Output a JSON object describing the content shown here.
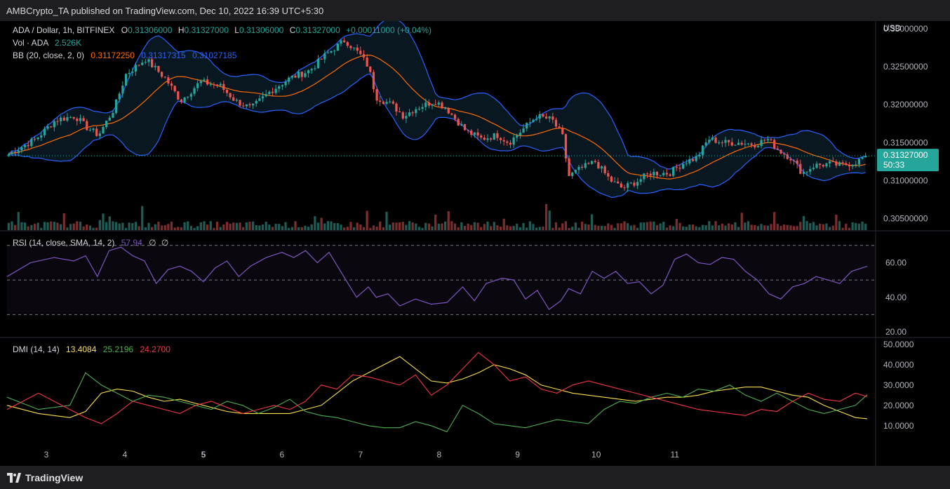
{
  "header": {
    "publisher": "AMBCrypto_TA published on TradingView.com, Dec 10, 2022 16:39 UTC+5:30"
  },
  "legend": {
    "symbol": "ADA / Dollar, 1h, BITFINEX",
    "o_label": "O",
    "o_value": "0.31306000",
    "h_label": "H",
    "h_value": "0.31327000",
    "l_label": "L",
    "l_value": "0.31306000",
    "c_label": "C",
    "c_value": "0.31327000",
    "change": "+0.00011000 (+0.04%)",
    "vol_label": "Vol · ADA",
    "vol_value": "2.526K",
    "bb_label": "BB (20, close, 2, 0)",
    "bb_basis": "0.31172250",
    "bb_upper": "0.31317315",
    "bb_lower": "0.31027185"
  },
  "price_axis": {
    "currency": "USD",
    "ticks": [
      "0.33000000",
      "0.32500000",
      "0.32000000",
      "0.31500000",
      "0.31000000",
      "0.30500000"
    ],
    "last_price": "0.31327000",
    "countdown": "50:33"
  },
  "rsi": {
    "label": "RSI (14, close, SMA, 14, 2)",
    "value": "57.94",
    "extra1": "∅",
    "extra2": "∅",
    "ticks": [
      "60.00",
      "40.00",
      "20.00"
    ]
  },
  "dmi": {
    "label": "DMI (14, 14)",
    "adx": "13.4084",
    "plus_di": "25.2196",
    "minus_di": "24.2700",
    "ticks": [
      "50.0000",
      "40.0000",
      "30.0000",
      "20.0000",
      "10.0000"
    ]
  },
  "time_axis": {
    "ticks": [
      "3",
      "4",
      "5",
      "6",
      "7",
      "8",
      "9",
      "10",
      "11"
    ]
  },
  "footer": {
    "brand": "TradingView"
  },
  "colors": {
    "up": "#26a69a",
    "down": "#ef5350",
    "bb_upper": "#2962ff",
    "bb_basis": "#ff6d00",
    "rsi": "#7e57c2",
    "adx": "#f9e04b",
    "plus_di": "#4caf50",
    "minus_di": "#f23645"
  },
  "chart_data": [
    {
      "type": "candlestick",
      "title": "ADA / Dollar, 1h, BITFINEX",
      "ylabel": "USD",
      "ylim": [
        0.3035,
        0.331
      ],
      "x_days": [
        "3",
        "4",
        "5",
        "6",
        "7",
        "8",
        "9",
        "10",
        "11"
      ],
      "anchor_closes": [
        [
          0.0,
          0.3135
        ],
        [
          0.35,
          0.3155
        ],
        [
          0.6,
          0.318
        ],
        [
          0.85,
          0.3185
        ],
        [
          1.0,
          0.317
        ],
        [
          1.15,
          0.316
        ],
        [
          1.35,
          0.3195
        ],
        [
          1.5,
          0.324
        ],
        [
          1.75,
          0.326
        ],
        [
          2.0,
          0.3235
        ],
        [
          2.2,
          0.3205
        ],
        [
          2.45,
          0.323
        ],
        [
          2.7,
          0.3225
        ],
        [
          2.9,
          0.3205
        ],
        [
          3.1,
          0.3195
        ],
        [
          3.35,
          0.3218
        ],
        [
          3.6,
          0.3235
        ],
        [
          3.85,
          0.3245
        ],
        [
          4.05,
          0.3265
        ],
        [
          4.3,
          0.3285
        ],
        [
          4.5,
          0.3265
        ],
        [
          4.6,
          0.325
        ],
        [
          4.7,
          0.321
        ],
        [
          4.9,
          0.32
        ],
        [
          5.05,
          0.3185
        ],
        [
          5.2,
          0.3195
        ],
        [
          5.45,
          0.3205
        ],
        [
          5.6,
          0.3195
        ],
        [
          5.85,
          0.3165
        ],
        [
          6.05,
          0.3155
        ],
        [
          6.25,
          0.316
        ],
        [
          6.4,
          0.315
        ],
        [
          6.55,
          0.3165
        ],
        [
          6.75,
          0.3185
        ],
        [
          6.95,
          0.318
        ],
        [
          7.1,
          0.3155
        ],
        [
          7.15,
          0.3105
        ],
        [
          7.3,
          0.3115
        ],
        [
          7.5,
          0.3125
        ],
        [
          7.7,
          0.31
        ],
        [
          7.85,
          0.309
        ],
        [
          8.05,
          0.31
        ],
        [
          8.2,
          0.311
        ],
        [
          8.45,
          0.311
        ],
        [
          8.65,
          0.3125
        ],
        [
          8.8,
          0.313
        ],
        [
          8.95,
          0.3155
        ],
        [
          9.15,
          0.315
        ],
        [
          9.35,
          0.315
        ],
        [
          9.55,
          0.3148
        ],
        [
          9.7,
          0.3155
        ],
        [
          9.85,
          0.314
        ],
        [
          10.0,
          0.313
        ],
        [
          10.15,
          0.311
        ],
        [
          10.3,
          0.312
        ],
        [
          10.5,
          0.3122
        ],
        [
          10.65,
          0.312
        ],
        [
          10.85,
          0.3125
        ],
        [
          10.95,
          0.31327
        ]
      ],
      "bb": {
        "basis_last": 0.3117225,
        "upper_last": 0.31317315,
        "lower_last": 0.31027185
      }
    },
    {
      "type": "line",
      "title": "RSI (14, close, SMA, 14, 2)",
      "ylim": [
        18,
        76
      ],
      "bands": [
        30,
        50,
        70
      ],
      "x": [
        0.0,
        0.3,
        0.6,
        0.85,
        1.0,
        1.15,
        1.3,
        1.45,
        1.6,
        1.75,
        1.9,
        2.05,
        2.2,
        2.35,
        2.5,
        2.65,
        2.8,
        2.95,
        3.1,
        3.3,
        3.5,
        3.65,
        3.8,
        3.95,
        4.1,
        4.3,
        4.45,
        4.6,
        4.7,
        4.85,
        5.0,
        5.2,
        5.4,
        5.6,
        5.8,
        5.95,
        6.1,
        6.3,
        6.45,
        6.6,
        6.75,
        6.9,
        7.05,
        7.15,
        7.3,
        7.45,
        7.6,
        7.75,
        7.9,
        8.05,
        8.2,
        8.35,
        8.5,
        8.65,
        8.8,
        8.95,
        9.1,
        9.25,
        9.4,
        9.55,
        9.7,
        9.85,
        10.0,
        10.15,
        10.3,
        10.45,
        10.6,
        10.75,
        10.95
      ],
      "values": [
        52,
        60,
        63,
        61,
        64,
        52,
        67,
        69,
        64,
        61,
        48,
        56,
        58,
        55,
        49,
        57,
        61,
        52,
        58,
        63,
        66,
        63,
        67,
        60,
        66,
        51,
        40,
        46,
        40,
        42,
        35,
        39,
        36,
        37,
        46,
        38,
        48,
        51,
        50,
        39,
        44,
        33,
        38,
        45,
        42,
        55,
        51,
        55,
        48,
        49,
        42,
        47,
        62,
        65,
        60,
        59,
        63,
        62,
        55,
        50,
        42,
        39,
        46,
        48,
        52,
        50,
        48,
        55,
        57.94
      ]
    },
    {
      "type": "line",
      "title": "DMI (14, 14)",
      "ylim": [
        2,
        52
      ],
      "x": [
        0.0,
        0.4,
        0.8,
        1.0,
        1.2,
        1.4,
        1.6,
        1.8,
        2.0,
        2.2,
        2.4,
        2.6,
        2.8,
        3.0,
        3.2,
        3.4,
        3.6,
        3.8,
        4.0,
        4.2,
        4.4,
        4.6,
        4.8,
        5.0,
        5.2,
        5.4,
        5.6,
        5.8,
        6.0,
        6.2,
        6.4,
        6.6,
        6.8,
        7.0,
        7.2,
        7.4,
        7.6,
        7.8,
        8.0,
        8.2,
        8.4,
        8.6,
        8.8,
        9.0,
        9.2,
        9.4,
        9.6,
        9.8,
        10.0,
        10.2,
        10.4,
        10.6,
        10.8,
        10.95
      ],
      "series": [
        {
          "name": "",
          "values": [
            20,
            16,
            14,
            17,
            26,
            28,
            27,
            24,
            22,
            23,
            21,
            19,
            17,
            16,
            16,
            16,
            16,
            18,
            20,
            26,
            32,
            36,
            40,
            44,
            38,
            32,
            31,
            33,
            36,
            40,
            38,
            35,
            30,
            28,
            26,
            25,
            24,
            23,
            22,
            23,
            24,
            24,
            25,
            27,
            28,
            29,
            29,
            27,
            25,
            24,
            20,
            17,
            14,
            13.4
          ]
        },
        {
          "name": "",
          "values": [
            24,
            18,
            20,
            36,
            30,
            26,
            22,
            25,
            24,
            22,
            20,
            18,
            22,
            20,
            16,
            19,
            23,
            17,
            15,
            14,
            12,
            10,
            9,
            9,
            12,
            10,
            7,
            20,
            16,
            11,
            10,
            9,
            11,
            13,
            12,
            11,
            18,
            22,
            21,
            24,
            26,
            24,
            28,
            27,
            30,
            25,
            22,
            26,
            22,
            18,
            16,
            18,
            20,
            25.2
          ]
        },
        {
          "name": "",
          "values": [
            18,
            26,
            18,
            14,
            11,
            16,
            22,
            20,
            18,
            16,
            20,
            22,
            19,
            16,
            18,
            20,
            18,
            22,
            30,
            28,
            35,
            34,
            32,
            30,
            35,
            25,
            30,
            38,
            46,
            40,
            32,
            34,
            28,
            26,
            30,
            32,
            30,
            28,
            26,
            24,
            22,
            20,
            18,
            17,
            16,
            15,
            18,
            17,
            22,
            26,
            23,
            22,
            26,
            24.3
          ]
        }
      ]
    }
  ]
}
